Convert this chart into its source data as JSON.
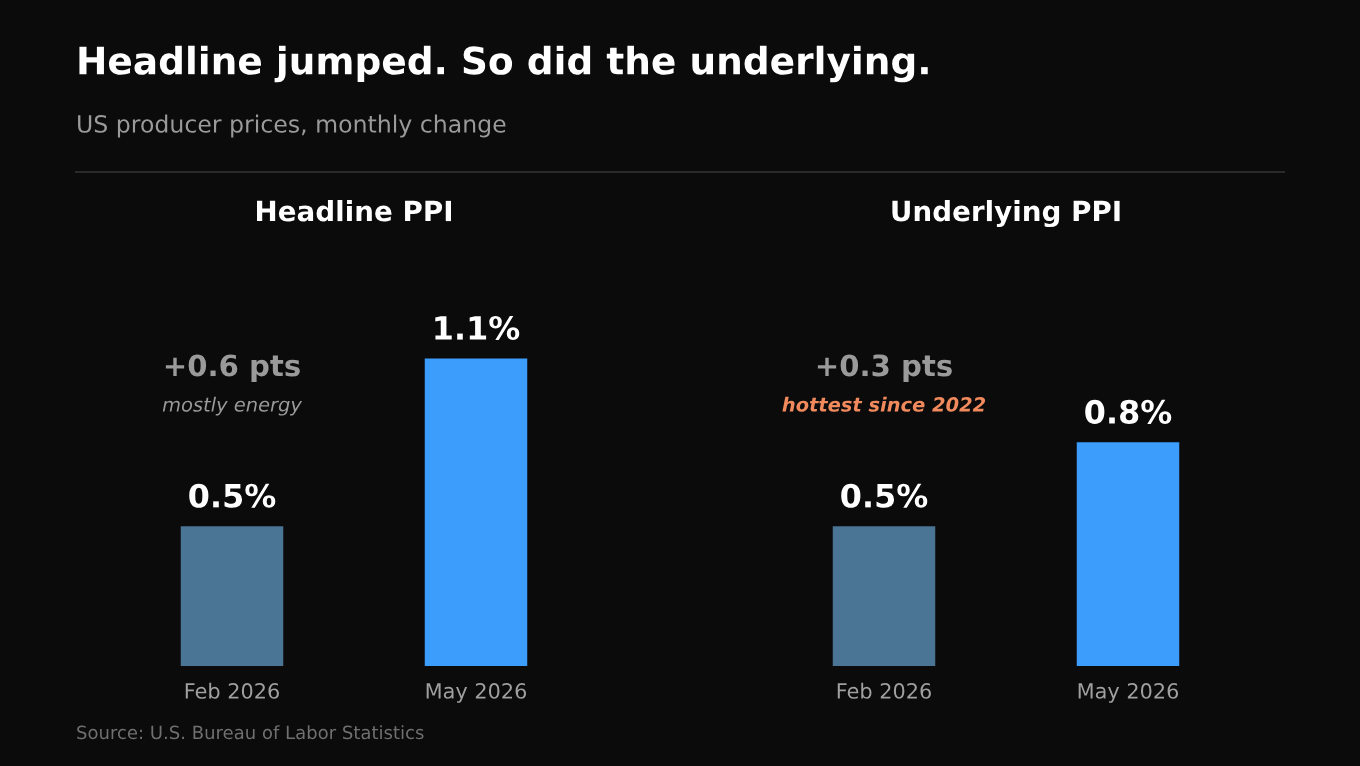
{
  "chart_data": [
    {
      "type": "bar",
      "title": "Headline PPI",
      "categories": [
        "Feb 2026",
        "May 2026"
      ],
      "values": [
        0.5,
        1.1
      ],
      "colors": [
        "#4a7595",
        "#3d9dfd"
      ],
      "value_labels": [
        "0.5%",
        "1.1%"
      ],
      "annotations": [
        "Headline jumped. So did the underlying.",
        "US producer prices, monthly change",
        "+0.6 pts",
        "mostly energy",
        "Source: U.S. Bureau of Labor Statistics"
      ]
    },
    {
      "type": "bar",
      "title": "Underlying PPI",
      "categories": [
        "Feb 2026",
        "May 2026"
      ],
      "values": [
        0.5,
        0.8
      ],
      "colors": [
        "#4a7595",
        "#3d9dfd"
      ],
      "value_labels": [
        "0.5%",
        "0.8%"
      ],
      "annotations": [
        "+0.3 pts",
        "hottest since 2022"
      ]
    }
  ]
}
